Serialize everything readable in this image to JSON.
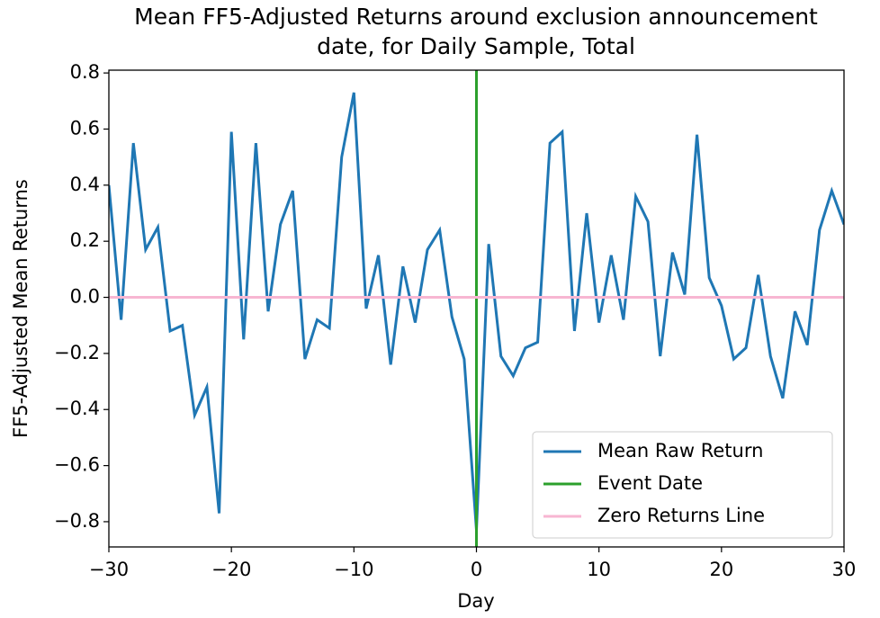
{
  "chart_data": {
    "type": "line",
    "title": [
      "Mean FF5-Adjusted Returns around exclusion announcement",
      "date, for Daily Sample, Total"
    ],
    "xlabel": "Day",
    "ylabel": "FF5-Adjusted Mean Returns",
    "x": [
      -30,
      -29,
      -28,
      -27,
      -26,
      -25,
      -24,
      -23,
      -22,
      -21,
      -20,
      -19,
      -18,
      -17,
      -16,
      -15,
      -14,
      -13,
      -12,
      -11,
      -10,
      -9,
      -8,
      -7,
      -6,
      -5,
      -4,
      -3,
      -2,
      -1,
      0,
      1,
      2,
      3,
      4,
      5,
      6,
      7,
      8,
      9,
      10,
      11,
      12,
      13,
      14,
      15,
      16,
      17,
      18,
      19,
      20,
      21,
      22,
      23,
      24,
      25,
      26,
      27,
      28,
      29,
      30
    ],
    "series": [
      {
        "name": "Mean Raw Return",
        "color": "#1f77b4",
        "values": [
          0.4,
          -0.08,
          0.55,
          0.17,
          0.25,
          -0.12,
          -0.1,
          -0.42,
          -0.32,
          -0.77,
          0.59,
          -0.15,
          0.55,
          -0.05,
          0.26,
          0.38,
          -0.22,
          -0.08,
          -0.11,
          0.5,
          0.73,
          -0.04,
          0.15,
          -0.24,
          0.11,
          -0.09,
          0.17,
          0.24,
          -0.07,
          -0.22,
          -0.83,
          0.19,
          -0.21,
          -0.28,
          -0.18,
          -0.16,
          0.55,
          0.59,
          -0.12,
          0.3,
          -0.09,
          0.15,
          -0.08,
          0.36,
          0.27,
          -0.21,
          0.16,
          0.01,
          0.58,
          0.07,
          -0.03,
          -0.22,
          -0.18,
          0.08,
          -0.21,
          -0.36,
          -0.05,
          -0.17,
          0.24,
          0.38,
          0.26
        ]
      }
    ],
    "event_line": {
      "name": "Event Date",
      "color": "#2ca02c",
      "x": 0
    },
    "zero_line": {
      "name": "Zero Returns Line",
      "color": "#f7b6d2",
      "y": 0
    },
    "xlim": [
      -30,
      30
    ],
    "xticks": [
      {
        "value": -30,
        "label": "−30"
      },
      {
        "value": -20,
        "label": "−20"
      },
      {
        "value": -10,
        "label": "−10"
      },
      0,
      10,
      20,
      30
    ],
    "ylim": [
      -0.89,
      0.81
    ],
    "yticks": [
      {
        "value": -0.8,
        "label": "−0.8"
      },
      {
        "value": -0.6,
        "label": "−0.6"
      },
      {
        "value": -0.4,
        "label": "−0.4"
      },
      {
        "value": -0.2,
        "label": "−0.2"
      },
      {
        "value": 0,
        "label": "0.0"
      },
      0.2,
      0.4,
      0.6,
      0.8
    ],
    "legend": "lower right"
  }
}
